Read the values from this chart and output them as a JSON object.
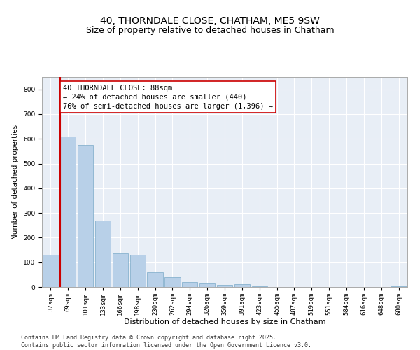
{
  "title": "40, THORNDALE CLOSE, CHATHAM, ME5 9SW",
  "subtitle": "Size of property relative to detached houses in Chatham",
  "xlabel": "Distribution of detached houses by size in Chatham",
  "ylabel": "Number of detached properties",
  "bar_color": "#b8d0e8",
  "bar_edge_color": "#7aaac8",
  "background_color": "#e8eef6",
  "grid_color": "#ffffff",
  "fig_bg_color": "#ffffff",
  "categories": [
    "37sqm",
    "69sqm",
    "101sqm",
    "133sqm",
    "166sqm",
    "198sqm",
    "230sqm",
    "262sqm",
    "294sqm",
    "326sqm",
    "359sqm",
    "391sqm",
    "423sqm",
    "455sqm",
    "487sqm",
    "519sqm",
    "551sqm",
    "584sqm",
    "616sqm",
    "648sqm",
    "680sqm"
  ],
  "values": [
    130,
    610,
    575,
    270,
    135,
    130,
    60,
    40,
    20,
    15,
    8,
    10,
    2,
    1,
    1,
    0,
    0,
    0,
    0,
    0,
    2
  ],
  "ylim": [
    0,
    850
  ],
  "yticks": [
    0,
    100,
    200,
    300,
    400,
    500,
    600,
    700,
    800
  ],
  "property_line_bin": 1,
  "property_line_color": "#cc0000",
  "annotation_text": "40 THORNDALE CLOSE: 88sqm\n← 24% of detached houses are smaller (440)\n76% of semi-detached houses are larger (1,396) →",
  "annotation_box_color": "#ffffff",
  "annotation_box_edge_color": "#cc0000",
  "footer_text": "Contains HM Land Registry data © Crown copyright and database right 2025.\nContains public sector information licensed under the Open Government Licence v3.0.",
  "title_fontsize": 10,
  "subtitle_fontsize": 9,
  "annotation_fontsize": 7.5,
  "ylabel_fontsize": 7.5,
  "xlabel_fontsize": 8,
  "tick_fontsize": 6.5,
  "footer_fontsize": 6
}
